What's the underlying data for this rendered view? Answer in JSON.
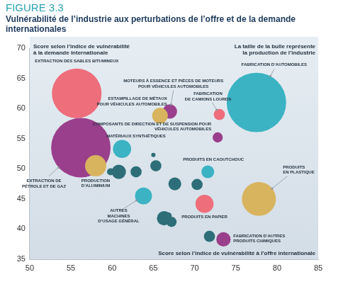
{
  "chart_data": {
    "type": "bubble",
    "figure_label": "FIGURE 3.3",
    "title": "Vulnérabilité de l’industrie aux perturbations de l’offre et de la demande internationales",
    "x_label": "Score selon l’indice de vulnérabilité à l’offre internationale",
    "y_label": "Score selon l’indice de vulnérabilité\nà la demande internationale",
    "annotations": [
      "La taille de la bulle représente\nla production de l’industrie"
    ],
    "xlim": [
      50,
      85
    ],
    "xticks": [
      50,
      55,
      60,
      65,
      70,
      75,
      80,
      85
    ],
    "ylim": [
      35,
      70
    ],
    "yticks": [
      35,
      40,
      45,
      50,
      55,
      60,
      65,
      70
    ],
    "grid": false,
    "labels": [
      "EXTRACTION DES SABLES BITUMINEUX",
      "FABRICATION D’AUTOMOBILES",
      "EXTRACTION DE\nPÉTROLE ET DE GAZ",
      "MOTEURS À ESSENCE ET PIÈCES DE MOTEURS\nPOUR VÉHICULES AUTOMOBILES",
      "ESTAMPILLAGE DE MÉTAUX\nPOUR VÉHICULES AUTOMOBILES",
      "FABRICATION\nDE CAMIONS LOURDS",
      "COMPOSANTS DE DIRECTION ET DE SUSPENSION POUR\nVÉHICULES AUTOMOBILES",
      "MATÉRIAUX SYNTHÉTIQUES",
      "PRODUCTION\nD’ALUMINIUM",
      "PRODUITS EN CAOUTCHOUC",
      "PRODUITS\nEN PLASTIQUE",
      "AUTRES\nMACHINES\nD’USAGE GÉNÉRAL",
      "PRODUITS EN PAPIER",
      "FABRICATION D’AUTRES\nPRODUITS CHIMIQUES",
      null,
      null,
      null,
      null,
      null,
      null,
      null,
      null,
      null,
      null,
      null
    ],
    "x": [
      55.7,
      77.5,
      56.2,
      67,
      65.8,
      73,
      72.8,
      61.2,
      58,
      71.6,
      77.8,
      63.8,
      71.2,
      73.5,
      59.8,
      60.8,
      62.9,
      65.3,
      65,
      67.6,
      70.3,
      66.3,
      67.2,
      66.8,
      71.8
    ],
    "values": [
      62.5,
      61,
      53.5,
      59.5,
      58.8,
      59,
      55.2,
      53.3,
      50.5,
      49.5,
      45,
      45.5,
      44.2,
      38.3,
      49.5,
      49.5,
      49.5,
      50.5,
      52.3,
      47.5,
      47.4,
      41.8,
      41.2,
      42.2,
      38.8
    ],
    "sizes": [
      120,
      172,
      172,
      10,
      12,
      6,
      5,
      16,
      22,
      8,
      56,
      14,
      16,
      10,
      2.4,
      10,
      6,
      6,
      0.9,
      8,
      6,
      10,
      5,
      2.4,
      6
    ],
    "colors": [
      "#ee6e7c",
      "#3bb3c3",
      "#9a3f8c",
      "#9a3f8c",
      "#d8b45e",
      "#ee6e7c",
      "#9a3f8c",
      "#3bb3c3",
      "#d8b45e",
      "#3bb3c3",
      "#d8b45e",
      "#3bb3c3",
      "#ee6e7c",
      "#9a3f8c",
      "#2d6e78",
      "#2d6e78",
      "#2d6e78",
      "#2d6e78",
      "#2d6e78",
      "#2d6e78",
      "#2d6e78",
      "#2d6e78",
      "#2d6e78",
      "#2d6e78",
      "#2d6e78"
    ]
  }
}
